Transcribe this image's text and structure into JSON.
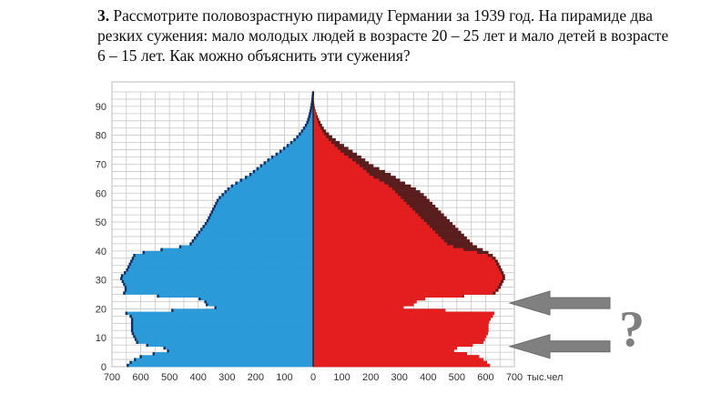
{
  "task": {
    "number": "3.",
    "text": "Рассмотрите половозрастную пирамиду Германии за 1939 год. На пирамиде два резких сужения: мало молодых людей в возрасте 20 – 25 лет и мало детей в возрасте 6 – 15 лет. Как можно объяснить эти сужения?"
  },
  "question_mark": "?",
  "colors": {
    "male": "#2a9ad8",
    "female": "#e41e1e",
    "female_excess": "#5a1d1d",
    "male_edge": "#0d2f66",
    "arrow": "#808080",
    "grid": "#c8c8c8"
  },
  "chart_data": {
    "type": "bar",
    "orientation": "horizontal-pyramid",
    "y_ticks": [
      "0",
      "10",
      "20",
      "30",
      "40",
      "50",
      "60",
      "70",
      "80",
      "90"
    ],
    "x_ticks": [
      "700",
      "600",
      "500",
      "400",
      "300",
      "200",
      "100",
      "0",
      "100",
      "200",
      "300",
      "400",
      "500",
      "600",
      "700"
    ],
    "x_unit": "тыс.чел",
    "xlim": [
      -700,
      700
    ],
    "ylim": [
      0,
      95
    ],
    "grid": true,
    "series": [
      {
        "side": "left",
        "color": "#2a9ad8",
        "points": [
          [
            0,
            650
          ],
          [
            2,
            630
          ],
          [
            4,
            590
          ],
          [
            5,
            520
          ],
          [
            6,
            490
          ],
          [
            7,
            545
          ],
          [
            8,
            610
          ],
          [
            10,
            620
          ],
          [
            12,
            630
          ],
          [
            14,
            630
          ],
          [
            15,
            630
          ],
          [
            16,
            630
          ],
          [
            17,
            630
          ],
          [
            18,
            640
          ],
          [
            19,
            660
          ],
          [
            20,
            320
          ],
          [
            21,
            360
          ],
          [
            22,
            380
          ],
          [
            23,
            370
          ],
          [
            24,
            420
          ],
          [
            25,
            660
          ],
          [
            27,
            650
          ],
          [
            29,
            660
          ],
          [
            31,
            670
          ],
          [
            33,
            650
          ],
          [
            35,
            640
          ],
          [
            37,
            630
          ],
          [
            39,
            620
          ],
          [
            40,
            560
          ],
          [
            42,
            430
          ],
          [
            44,
            415
          ],
          [
            46,
            400
          ],
          [
            48,
            385
          ],
          [
            50,
            370
          ],
          [
            52,
            360
          ],
          [
            54,
            350
          ],
          [
            56,
            340
          ],
          [
            58,
            330
          ],
          [
            60,
            310
          ],
          [
            62,
            290
          ],
          [
            64,
            260
          ],
          [
            66,
            225
          ],
          [
            68,
            200
          ],
          [
            70,
            175
          ],
          [
            72,
            150
          ],
          [
            74,
            120
          ],
          [
            76,
            95
          ],
          [
            78,
            70
          ],
          [
            80,
            50
          ],
          [
            82,
            35
          ],
          [
            84,
            22
          ],
          [
            86,
            15
          ],
          [
            88,
            10
          ],
          [
            90,
            6
          ],
          [
            92,
            3
          ],
          [
            94,
            1
          ],
          [
            95,
            0
          ]
        ]
      },
      {
        "side": "right",
        "color": "#e41e1e",
        "points": [
          [
            0,
            620
          ],
          [
            2,
            600
          ],
          [
            4,
            570
          ],
          [
            5,
            500
          ],
          [
            6,
            480
          ],
          [
            7,
            520
          ],
          [
            8,
            590
          ],
          [
            10,
            600
          ],
          [
            12,
            610
          ],
          [
            14,
            610
          ],
          [
            15,
            610
          ],
          [
            16,
            615
          ],
          [
            17,
            620
          ],
          [
            18,
            630
          ],
          [
            19,
            630
          ],
          [
            20,
            290
          ],
          [
            21,
            340
          ],
          [
            22,
            360
          ],
          [
            23,
            360
          ],
          [
            24,
            420
          ],
          [
            25,
            620
          ],
          [
            27,
            640
          ],
          [
            29,
            650
          ],
          [
            31,
            660
          ],
          [
            33,
            650
          ],
          [
            35,
            640
          ],
          [
            37,
            630
          ],
          [
            39,
            600
          ],
          [
            40,
            540
          ],
          [
            42,
            470
          ],
          [
            44,
            450
          ],
          [
            46,
            430
          ],
          [
            48,
            410
          ],
          [
            50,
            390
          ],
          [
            52,
            370
          ],
          [
            54,
            350
          ],
          [
            56,
            330
          ],
          [
            58,
            310
          ],
          [
            60,
            290
          ],
          [
            62,
            270
          ],
          [
            64,
            240
          ],
          [
            66,
            200
          ],
          [
            68,
            180
          ],
          [
            70,
            155
          ],
          [
            72,
            130
          ],
          [
            74,
            100
          ],
          [
            76,
            80
          ],
          [
            78,
            58
          ],
          [
            80,
            40
          ],
          [
            82,
            28
          ],
          [
            84,
            18
          ],
          [
            86,
            12
          ],
          [
            88,
            8
          ],
          [
            90,
            4
          ],
          [
            92,
            2
          ],
          [
            94,
            1
          ],
          [
            95,
            0
          ]
        ]
      },
      {
        "side": "right",
        "color": "#5a1d1d",
        "points": [
          [
            0,
            620
          ],
          [
            2,
            600
          ],
          [
            4,
            570
          ],
          [
            5,
            500
          ],
          [
            6,
            480
          ],
          [
            7,
            520
          ],
          [
            8,
            590
          ],
          [
            10,
            600
          ],
          [
            12,
            610
          ],
          [
            14,
            610
          ],
          [
            15,
            610
          ],
          [
            16,
            615
          ],
          [
            17,
            620
          ],
          [
            18,
            630
          ],
          [
            19,
            630
          ],
          [
            20,
            290
          ],
          [
            21,
            340
          ],
          [
            22,
            360
          ],
          [
            23,
            360
          ],
          [
            24,
            420
          ],
          [
            25,
            630
          ],
          [
            27,
            650
          ],
          [
            29,
            660
          ],
          [
            31,
            670
          ],
          [
            33,
            660
          ],
          [
            35,
            650
          ],
          [
            37,
            640
          ],
          [
            39,
            620
          ],
          [
            40,
            600
          ],
          [
            42,
            560
          ],
          [
            44,
            540
          ],
          [
            46,
            520
          ],
          [
            48,
            500
          ],
          [
            50,
            480
          ],
          [
            52,
            460
          ],
          [
            54,
            440
          ],
          [
            56,
            420
          ],
          [
            58,
            400
          ],
          [
            60,
            380
          ],
          [
            62,
            350
          ],
          [
            64,
            310
          ],
          [
            66,
            280
          ],
          [
            68,
            240
          ],
          [
            70,
            200
          ],
          [
            72,
            175
          ],
          [
            74,
            145
          ],
          [
            76,
            115
          ],
          [
            78,
            85
          ],
          [
            80,
            60
          ],
          [
            82,
            40
          ],
          [
            84,
            28
          ],
          [
            86,
            18
          ],
          [
            88,
            10
          ],
          [
            90,
            5
          ],
          [
            92,
            2
          ],
          [
            94,
            1
          ],
          [
            95,
            0
          ]
        ]
      }
    ],
    "arrows_at_age": [
      22,
      7
    ]
  }
}
